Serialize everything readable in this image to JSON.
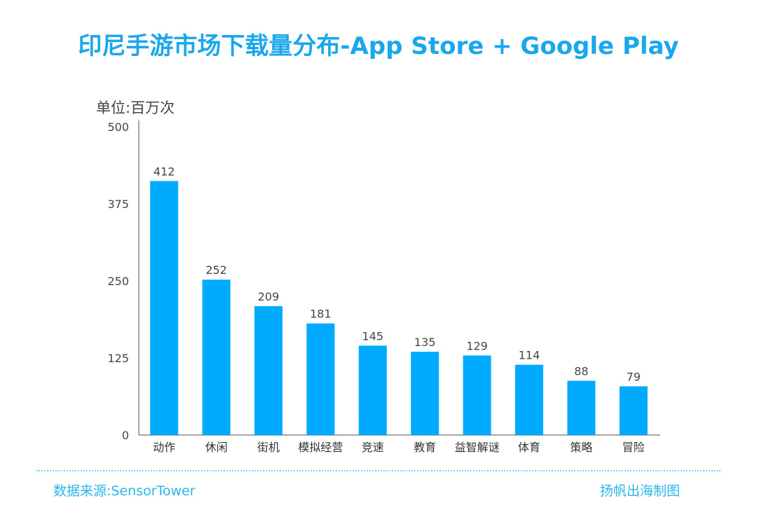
{
  "chart_data": {
    "type": "bar",
    "title": "印尼手游市场下载量分布-App Store + Google Play",
    "unit_label": "单位:百万次",
    "categories": [
      "动作",
      "休闲",
      "街机",
      "模拟经营",
      "竞速",
      "教育",
      "益智解谜",
      "体育",
      "策略",
      "冒险"
    ],
    "values": [
      412,
      252,
      209,
      181,
      145,
      135,
      129,
      114,
      88,
      79
    ],
    "ylim": [
      0,
      500
    ],
    "yticks": [
      0,
      125,
      250,
      375,
      500
    ],
    "grid": false,
    "legend": "none",
    "bar_color": "#00aaff"
  },
  "footer": {
    "source": "数据来源:SensorTower",
    "credit": "扬帆出海制图"
  }
}
